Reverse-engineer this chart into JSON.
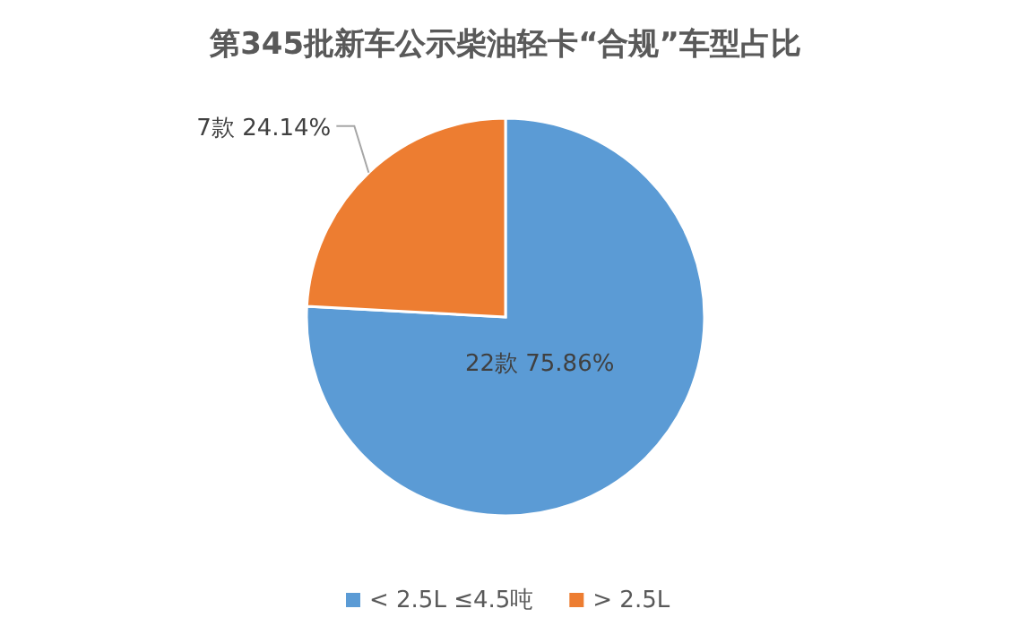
{
  "chart_data": {
    "type": "pie",
    "title": "第345批新车公示柴油轻卡“合规”车型占比",
    "categories": [
      "< 2.5L ≤4.5吨",
      "> 2.5L"
    ],
    "values": [
      22,
      7
    ],
    "colors": [
      "#5b9bd5",
      "#ed7d31"
    ],
    "value_labels": [
      "22款 75.86%",
      "7款 24.14%"
    ],
    "legend": "bottom"
  }
}
